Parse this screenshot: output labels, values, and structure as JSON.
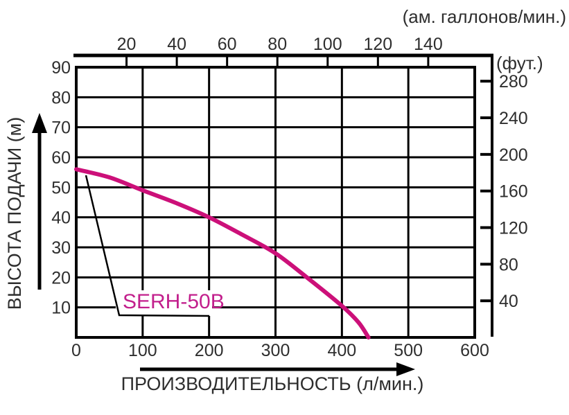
{
  "chart_data": {
    "type": "line",
    "grid": "on",
    "legend": "inline-callout",
    "top_axis": {
      "title": "(ам. галлонов/мин.)",
      "ticks": [
        20,
        40,
        60,
        80,
        100,
        120,
        140
      ]
    },
    "right_axis": {
      "title": "(фут.)",
      "ticks": [
        40,
        80,
        120,
        160,
        200,
        240,
        280
      ]
    },
    "left_axis": {
      "title": "ВЫСОТА ПОДАЧИ (м)",
      "ticks": [
        10,
        20,
        30,
        40,
        50,
        60,
        70,
        80,
        90
      ],
      "range": [
        0,
        90
      ]
    },
    "bottom_axis": {
      "title": "ПРОИЗВОДИТЕЛЬНОСТЬ (л/мин.)",
      "ticks": [
        0,
        100,
        200,
        300,
        400,
        500,
        600
      ],
      "range": [
        0,
        600
      ]
    },
    "series": [
      {
        "name": "SERH-50B",
        "color": "#cc1079",
        "label_color": "#c21f8c",
        "points": [
          [
            0,
            56
          ],
          [
            50,
            53.3
          ],
          [
            100,
            49
          ],
          [
            150,
            44.8
          ],
          [
            200,
            40
          ],
          [
            250,
            34.2
          ],
          [
            300,
            28
          ],
          [
            350,
            19.5
          ],
          [
            400,
            10.5
          ],
          [
            425,
            5
          ],
          [
            440,
            0
          ]
        ]
      }
    ]
  },
  "colors": {
    "line": "#000000",
    "text": "#2e2e2e",
    "background": "#ffffff"
  }
}
